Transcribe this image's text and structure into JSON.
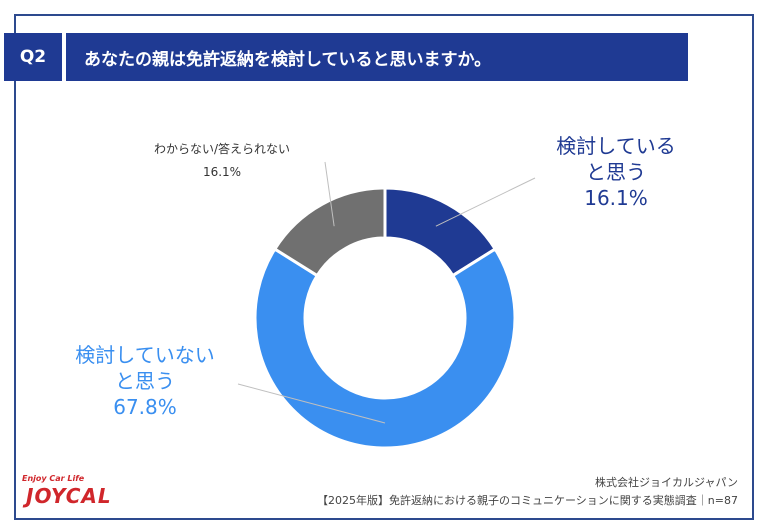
{
  "header": {
    "q_label": "Q2",
    "title": "あなたの親は免許返納を検討していると思いますか。"
  },
  "colors": {
    "header_bg": "#1f3a93",
    "considering": "#1f3a93",
    "not_considering": "#3a8ff0",
    "unknown": "#707070"
  },
  "chart_data": {
    "type": "pie",
    "variant": "donut",
    "slices": [
      {
        "label_lines": [
          "検討している",
          "と思う"
        ],
        "value": 16.1,
        "value_label": "16.1%",
        "color": "#1f3a93"
      },
      {
        "label_lines": [
          "検討していない",
          "と思う"
        ],
        "value": 67.8,
        "value_label": "67.8%",
        "color": "#3a8ff0"
      },
      {
        "label_lines": [
          "わからない/答えられない"
        ],
        "value": 16.1,
        "value_label": "16.1%",
        "color": "#707070"
      }
    ]
  },
  "logo": {
    "tagline": "Enjoy Car Life",
    "name": "JOYCAL"
  },
  "footer": {
    "company": "株式会社ジョイカルジャパン",
    "survey": "【2025年版】免許返納における親子のコミュニケーションに関する実態調査｜n=87"
  }
}
